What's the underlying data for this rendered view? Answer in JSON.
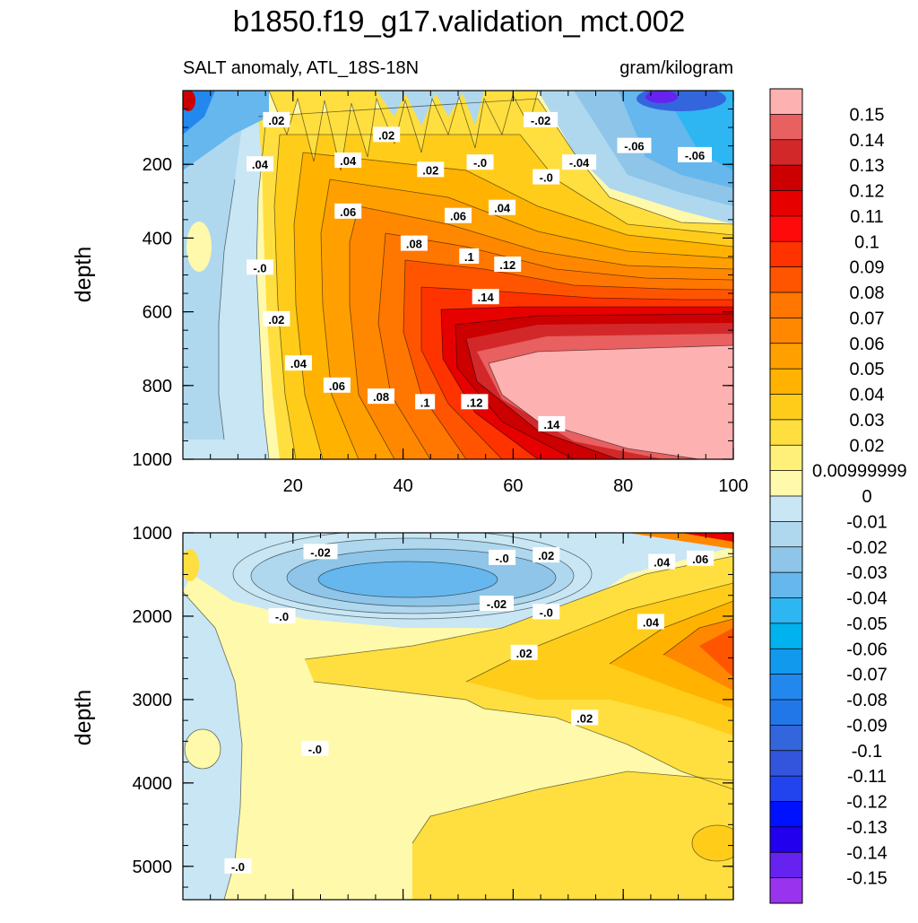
{
  "chart_data": {
    "type": "heatmap",
    "title": "b1850.f19_g17.validation_mct.002",
    "subtitle_left": "SALT anomaly, ATL_18S-18N",
    "subtitle_right": "gram/kilogram",
    "ylabel": "depth",
    "panels": [
      {
        "name": "upper",
        "xlim": [
          0,
          100
        ],
        "ylim": [
          0,
          1000
        ],
        "x_ticks": [
          "20",
          "40",
          "60",
          "80",
          "100"
        ],
        "y_ticks": [
          "200",
          "400",
          "600",
          "800",
          "1000"
        ],
        "contour_labels": [
          {
            "t": ".02",
            "x": 17,
            "y": 80
          },
          {
            "t": ".02",
            "x": 37,
            "y": 120
          },
          {
            "t": ".04",
            "x": 14,
            "y": 200
          },
          {
            "t": ".04",
            "x": 30,
            "y": 190
          },
          {
            "t": ".02",
            "x": 45,
            "y": 215
          },
          {
            "t": "-.0",
            "x": 54,
            "y": 195
          },
          {
            "t": "-.02",
            "x": 65,
            "y": 80
          },
          {
            "t": "-.0",
            "x": 66,
            "y": 235
          },
          {
            "t": "-.04",
            "x": 72,
            "y": 195
          },
          {
            "t": "-.06",
            "x": 82,
            "y": 150
          },
          {
            "t": "-.06",
            "x": 93,
            "y": 175
          },
          {
            "t": ".04",
            "x": 58,
            "y": 318
          },
          {
            "t": ".06",
            "x": 30,
            "y": 328
          },
          {
            "t": ".06",
            "x": 50,
            "y": 340
          },
          {
            "t": ".08",
            "x": 42,
            "y": 415
          },
          {
            "t": ".1",
            "x": 52,
            "y": 450
          },
          {
            "t": ".12",
            "x": 59,
            "y": 472
          },
          {
            "t": ".14",
            "x": 55,
            "y": 560
          },
          {
            "t": "-.0",
            "x": 14,
            "y": 480
          },
          {
            "t": ".02",
            "x": 17,
            "y": 620
          },
          {
            "t": ".04",
            "x": 21,
            "y": 740
          },
          {
            "t": ".06",
            "x": 28,
            "y": 800
          },
          {
            "t": ".08",
            "x": 36,
            "y": 830
          },
          {
            "t": ".1",
            "x": 44,
            "y": 845
          },
          {
            "t": ".12",
            "x": 53,
            "y": 845
          },
          {
            "t": ".14",
            "x": 67,
            "y": 905
          }
        ]
      },
      {
        "name": "lower",
        "xlim": [
          0,
          100
        ],
        "ylim": [
          1000,
          5400
        ],
        "y_ticks": [
          "1000",
          "2000",
          "3000",
          "4000",
          "5000"
        ],
        "contour_labels": [
          {
            "t": "-.02",
            "x": 25,
            "y": 1230
          },
          {
            "t": "-.0",
            "x": 58,
            "y": 1300
          },
          {
            "t": ".02",
            "x": 66,
            "y": 1270
          },
          {
            "t": ".04",
            "x": 87,
            "y": 1350
          },
          {
            "t": ".06",
            "x": 94,
            "y": 1310
          },
          {
            "t": "-.02",
            "x": 57,
            "y": 1850
          },
          {
            "t": "-.0",
            "x": 18,
            "y": 2000
          },
          {
            "t": "-.0",
            "x": 66,
            "y": 1950
          },
          {
            "t": ".04",
            "x": 85,
            "y": 2070
          },
          {
            "t": ".02",
            "x": 62,
            "y": 2440
          },
          {
            "t": ".02",
            "x": 73,
            "y": 3220
          },
          {
            "t": "-.0",
            "x": 24,
            "y": 3590
          },
          {
            "t": "-.0",
            "x": 10,
            "y": 5000
          }
        ]
      }
    ],
    "colorbar": {
      "labels": [
        "0.15",
        "0.14",
        "0.13",
        "0.12",
        "0.11",
        "0.1",
        "0.09",
        "0.08",
        "0.07",
        "0.06",
        "0.05",
        "0.04",
        "0.03",
        "0.02",
        "0.00999999",
        "0",
        "-0.01",
        "-0.02",
        "-0.03",
        "-0.04",
        "-0.05",
        "-0.06",
        "-0.07",
        "-0.08",
        "-0.09",
        "-0.1",
        "-0.11",
        "-0.12",
        "-0.13",
        "-0.14",
        "-0.15"
      ],
      "colors": [
        "#fdb1b1",
        "#e86060",
        "#d3282a",
        "#cc0000",
        "#e60000",
        "#ff0a0a",
        "#ff3300",
        "#ff5500",
        "#ff7700",
        "#ff8800",
        "#ffa000",
        "#ffb300",
        "#ffcc1a",
        "#ffdf40",
        "#fff07a",
        "#fff9ab",
        "#c8e6f4",
        "#afd8ef",
        "#8ec5e8",
        "#65b7ee",
        "#2db6f2",
        "#00b2ee",
        "#1199ee",
        "#2288ee",
        "#2277e8",
        "#3366dd",
        "#3355dd",
        "#2244ee",
        "#0011ff",
        "#2200ee",
        "#6622ee",
        "#9933ee"
      ]
    }
  }
}
